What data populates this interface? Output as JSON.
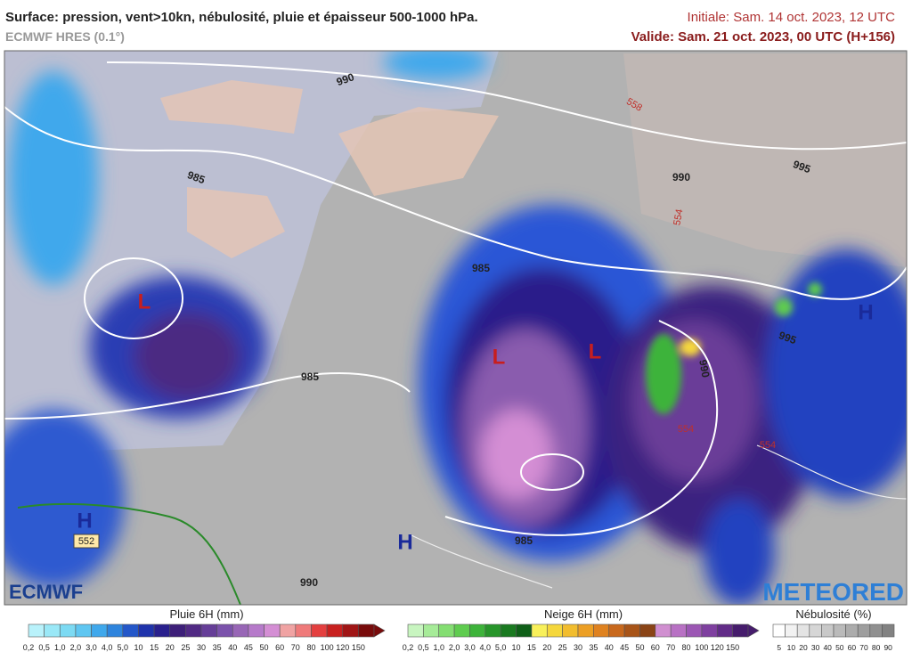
{
  "header": {
    "title": "Surface: pression, vent>10kn, nébulosité, pluie et épaisseur 500-1000 hPa.",
    "model": "ECMWF HRES (0.1°)",
    "initial": "Initiale: Sam. 14 oct. 2023, 12 UTC",
    "valid": "Valide: Sam. 21 oct. 2023, 00 UTC (H+156)"
  },
  "map": {
    "labels": [
      {
        "text": "990",
        "kind": "isobar"
      },
      {
        "text": "985",
        "kind": "isobar"
      },
      {
        "text": "990",
        "kind": "isobar"
      },
      {
        "text": "995",
        "kind": "isobar"
      },
      {
        "text": "558",
        "kind": "thickness"
      },
      {
        "text": "554",
        "kind": "thickness"
      },
      {
        "text": "985",
        "kind": "isobar"
      },
      {
        "text": "L",
        "kind": "low"
      },
      {
        "text": "L",
        "kind": "low"
      },
      {
        "text": "L",
        "kind": "low"
      },
      {
        "text": "985",
        "kind": "isobar"
      },
      {
        "text": "995",
        "kind": "isobar"
      },
      {
        "text": "990",
        "kind": "isobar"
      },
      {
        "text": "H",
        "kind": "high"
      },
      {
        "text": "H",
        "kind": "high"
      },
      {
        "text": "552",
        "kind": "boxed"
      },
      {
        "text": "H",
        "kind": "high"
      },
      {
        "text": "985",
        "kind": "isobar"
      },
      {
        "text": "990",
        "kind": "isobar"
      },
      {
        "text": "554",
        "kind": "thickness"
      },
      {
        "text": "554",
        "kind": "thickness"
      }
    ],
    "logo_left": "ECMWF",
    "logo_right": "METEORED"
  },
  "legends": [
    {
      "title": "Pluie 6H (mm)",
      "ticks": [
        "0,2",
        "0,5",
        "1,0",
        "2,0",
        "3,0",
        "4,0",
        "5,0",
        "10",
        "15",
        "20",
        "25",
        "30",
        "35",
        "40",
        "45",
        "50",
        "60",
        "70",
        "80",
        "100",
        "120",
        "150"
      ],
      "colors": [
        "#b9f2fb",
        "#9ae8f7",
        "#7cdaf3",
        "#5fc6f1",
        "#3fa8ec",
        "#2e84dd",
        "#2457c9",
        "#1f33ab",
        "#29208d",
        "#3d1f79",
        "#512a84",
        "#663e98",
        "#7b52ab",
        "#9866b6",
        "#b67aca",
        "#d48ed4",
        "#f0a3a3",
        "#ef7a7a",
        "#e43f3f",
        "#c8201f",
        "#a01515",
        "#780b0b"
      ]
    },
    {
      "title": "Neige 6H (mm)",
      "ticks": [
        "0,2",
        "0,5",
        "1,0",
        "2,0",
        "3,0",
        "4,0",
        "5,0",
        "10",
        "15",
        "20",
        "25",
        "30",
        "35",
        "40",
        "45",
        "50",
        "60",
        "70",
        "80",
        "100",
        "120",
        "150"
      ],
      "colors": [
        "#c8f5c0",
        "#a6eb98",
        "#84de72",
        "#5fcc4f",
        "#3db33a",
        "#27952a",
        "#1a7a20",
        "#0f5f18",
        "#f8f05a",
        "#f5d73c",
        "#f2bd2e",
        "#ec9f25",
        "#df8220",
        "#c8681c",
        "#a85418",
        "#8a4416",
        "#d08fd0",
        "#b871c4",
        "#9c57b4",
        "#7f40a0",
        "#622c88",
        "#461c6c"
      ]
    },
    {
      "title": "Nébulosité (%)",
      "ticks": [
        "5",
        "10",
        "20",
        "30",
        "40",
        "50",
        "60",
        "70",
        "80",
        "90"
      ],
      "colors": [
        "#ffffff",
        "#f2f2f2",
        "#e4e4e4",
        "#d6d6d6",
        "#c8c8c8",
        "#bababa",
        "#acacac",
        "#9e9e9e",
        "#909090",
        "#828282"
      ]
    }
  ]
}
